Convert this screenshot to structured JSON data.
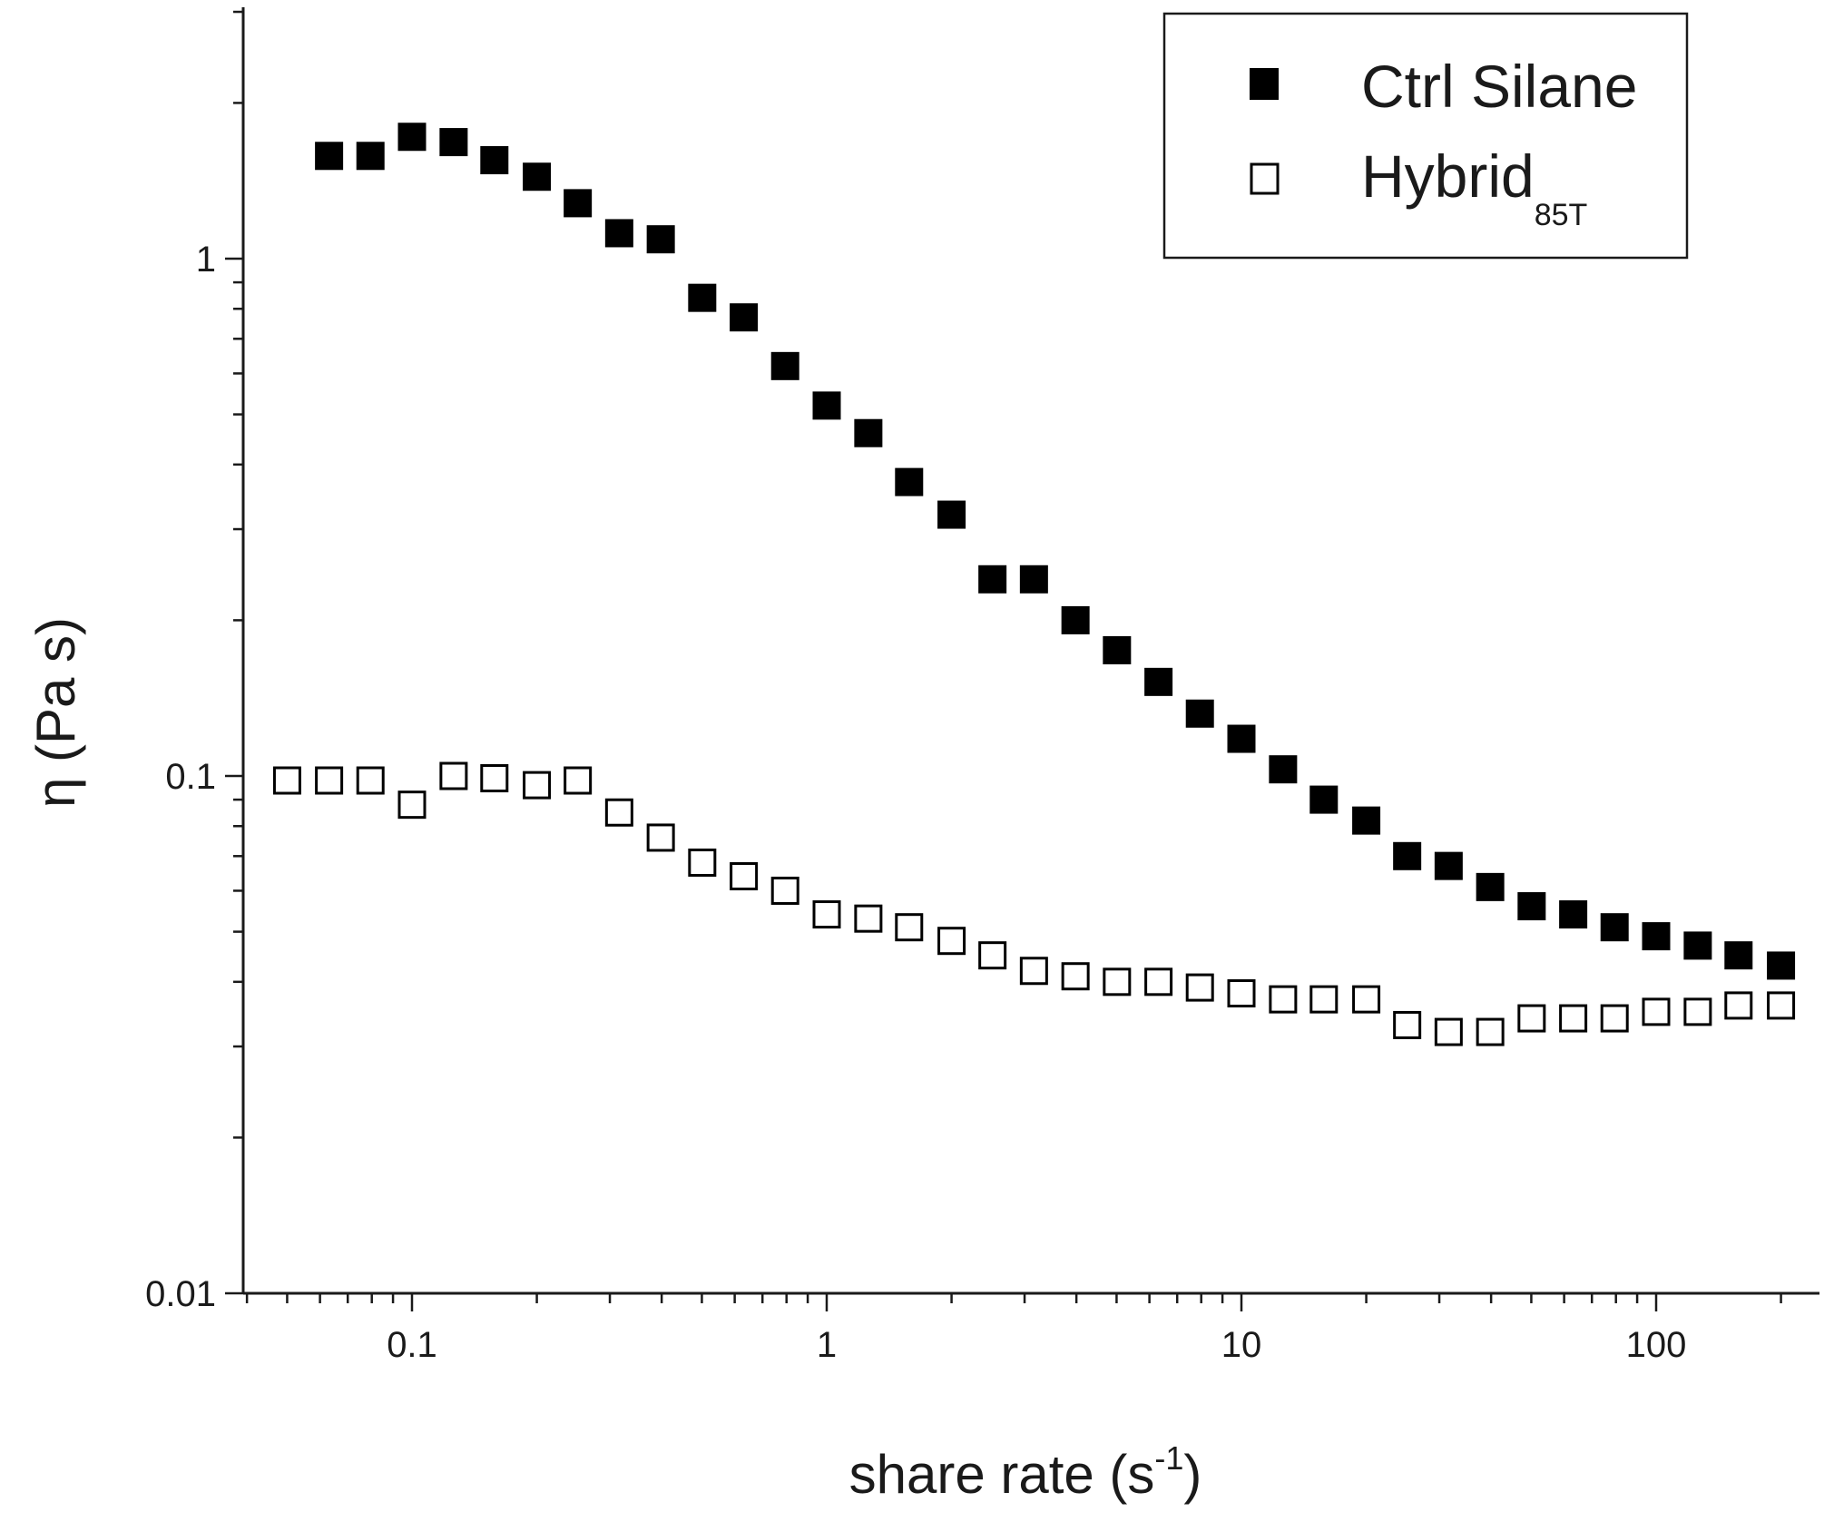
{
  "chart_data": {
    "type": "scatter",
    "title": "",
    "xscale": "log",
    "yscale": "log",
    "xlim": [
      0.04,
      250
    ],
    "ylim": [
      0.01,
      3.0
    ],
    "xlabel": "share rate (s",
    "xlabel_sup": "-1",
    "xlabel_close": ")",
    "ylabel": "η  (Pa s)",
    "x_ticks": [
      {
        "value": 0.1,
        "label": "0.1"
      },
      {
        "value": 1,
        "label": "1"
      },
      {
        "value": 10,
        "label": "10"
      },
      {
        "value": 100,
        "label": "100"
      }
    ],
    "y_ticks": [
      {
        "value": 0.01,
        "label": "0.01"
      },
      {
        "value": 0.1,
        "label": "0.1"
      },
      {
        "value": 1,
        "label": "1"
      }
    ],
    "legend_position": "top-right",
    "series": [
      {
        "name": "Ctrl Silane",
        "name_sub": "",
        "marker": "filled-square",
        "color": "#000000",
        "x": [
          0.0631,
          0.0794,
          0.1,
          0.126,
          0.158,
          0.2,
          0.251,
          0.316,
          0.398,
          0.501,
          0.631,
          0.794,
          1.0,
          1.26,
          1.58,
          2.0,
          2.51,
          3.16,
          3.98,
          5.01,
          6.31,
          7.94,
          10.0,
          12.6,
          15.8,
          20.0,
          25.1,
          31.6,
          39.8,
          50.1,
          63.1,
          79.4,
          100,
          126,
          158,
          200
        ],
        "y": [
          1.58,
          1.58,
          1.72,
          1.68,
          1.55,
          1.44,
          1.28,
          1.12,
          1.09,
          0.84,
          0.77,
          0.62,
          0.52,
          0.46,
          0.37,
          0.32,
          0.24,
          0.24,
          0.2,
          0.175,
          0.152,
          0.132,
          0.118,
          0.103,
          0.09,
          0.082,
          0.07,
          0.067,
          0.061,
          0.056,
          0.054,
          0.051,
          0.049,
          0.047,
          0.045,
          0.043
        ]
      },
      {
        "name": "Hybrid",
        "name_sub": "85T",
        "marker": "open-square",
        "color": "#000000",
        "x": [
          0.05,
          0.0631,
          0.0794,
          0.1,
          0.126,
          0.158,
          0.2,
          0.251,
          0.316,
          0.398,
          0.501,
          0.631,
          0.794,
          1.0,
          1.26,
          1.58,
          2.0,
          2.51,
          3.16,
          3.98,
          5.01,
          6.31,
          7.94,
          10.0,
          12.6,
          15.8,
          20.0,
          25.1,
          31.6,
          39.8,
          50.1,
          63.1,
          79.4,
          100,
          126,
          158,
          200
        ],
        "y": [
          0.098,
          0.098,
          0.098,
          0.088,
          0.1,
          0.099,
          0.096,
          0.098,
          0.085,
          0.076,
          0.068,
          0.064,
          0.06,
          0.054,
          0.053,
          0.051,
          0.048,
          0.045,
          0.042,
          0.041,
          0.04,
          0.04,
          0.039,
          0.038,
          0.037,
          0.037,
          0.037,
          0.033,
          0.032,
          0.032,
          0.034,
          0.034,
          0.034,
          0.035,
          0.035,
          0.036,
          0.036
        ]
      }
    ]
  }
}
